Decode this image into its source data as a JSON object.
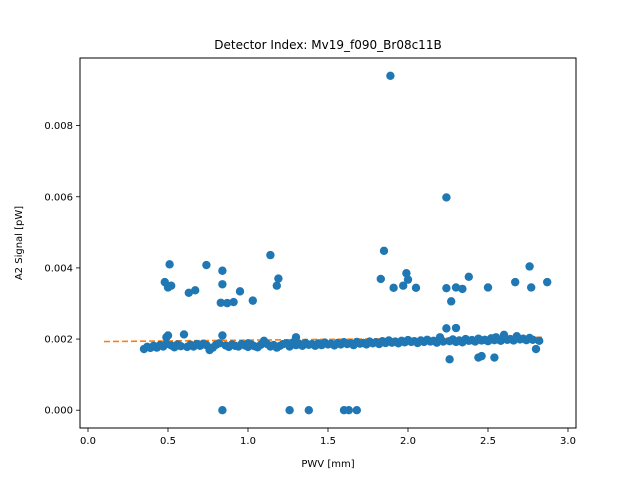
{
  "chart_data": {
    "type": "scatter",
    "title": "Detector Index: Mv19_f090_Br08c11B",
    "xlabel": "PWV [mm]",
    "ylabel": "A2 Signal [pW]",
    "xlim": [
      -0.05,
      3.05
    ],
    "ylim": [
      -0.0005,
      0.0099
    ],
    "xticks": [
      0.0,
      0.5,
      1.0,
      1.5,
      2.0,
      2.5,
      3.0
    ],
    "xtick_labels": [
      "0.0",
      "0.5",
      "1.0",
      "1.5",
      "2.0",
      "2.5",
      "3.0"
    ],
    "yticks": [
      0.0,
      0.002,
      0.004,
      0.006,
      0.008
    ],
    "ytick_labels": [
      "0.000",
      "0.002",
      "0.004",
      "0.006",
      "0.008"
    ],
    "grid": false,
    "series": [
      {
        "type": "scatter",
        "color": "#1f77b4",
        "points": [
          [
            0.35,
            0.00172
          ],
          [
            0.37,
            0.00178
          ],
          [
            0.39,
            0.00175
          ],
          [
            0.41,
            0.00181
          ],
          [
            0.43,
            0.00176
          ],
          [
            0.45,
            0.00183
          ],
          [
            0.47,
            0.00179
          ],
          [
            0.49,
            0.00186
          ],
          [
            0.5,
            0.0021
          ],
          [
            0.49,
            0.00205
          ],
          [
            0.52,
            0.00182
          ],
          [
            0.54,
            0.00177
          ],
          [
            0.56,
            0.00185
          ],
          [
            0.58,
            0.0018
          ],
          [
            0.6,
            0.00213
          ],
          [
            0.62,
            0.00178
          ],
          [
            0.64,
            0.00184
          ],
          [
            0.66,
            0.00179
          ],
          [
            0.68,
            0.00186
          ],
          [
            0.7,
            0.00181
          ],
          [
            0.72,
            0.00187
          ],
          [
            0.74,
            0.00183
          ],
          [
            0.76,
            0.00169
          ],
          [
            0.78,
            0.00176
          ],
          [
            0.8,
            0.00184
          ],
          [
            0.82,
            0.00188
          ],
          [
            0.84,
            0.0021
          ],
          [
            0.86,
            0.00182
          ],
          [
            0.88,
            0.00178
          ],
          [
            0.9,
            0.00185
          ],
          [
            0.92,
            0.00181
          ],
          [
            0.94,
            0.00179
          ],
          [
            0.96,
            0.00186
          ],
          [
            0.98,
            0.00182
          ],
          [
            1.0,
            0.00178
          ],
          [
            1.02,
            0.00185
          ],
          [
            1.04,
            0.0018
          ],
          [
            1.06,
            0.00177
          ],
          [
            1.08,
            0.00184
          ],
          [
            1.1,
            0.0019
          ],
          [
            1.12,
            0.00186
          ],
          [
            1.14,
            0.00179
          ],
          [
            1.16,
            0.00183
          ],
          [
            1.18,
            0.00176
          ],
          [
            1.2,
            0.00181
          ],
          [
            1.22,
            0.00186
          ],
          [
            1.24,
            0.00188
          ],
          [
            1.26,
            0.00179
          ],
          [
            1.28,
            0.0019
          ],
          [
            1.3,
            0.00183
          ],
          [
            1.32,
            0.00187
          ],
          [
            1.34,
            0.00181
          ],
          [
            1.36,
            0.00189
          ],
          [
            1.38,
            0.00184
          ],
          [
            1.4,
            0.00186
          ],
          [
            1.42,
            0.00181
          ],
          [
            1.44,
            0.00188
          ],
          [
            1.46,
            0.00183
          ],
          [
            1.48,
            0.0019
          ],
          [
            1.5,
            0.00185
          ],
          [
            1.52,
            0.00187
          ],
          [
            1.54,
            0.00182
          ],
          [
            1.56,
            0.00189
          ],
          [
            1.58,
            0.00185
          ],
          [
            1.6,
            0.00191
          ],
          [
            1.62,
            0.00186
          ],
          [
            1.64,
            0.00188
          ],
          [
            1.66,
            0.00183
          ],
          [
            1.68,
            0.00192
          ],
          [
            1.7,
            0.00187
          ],
          [
            1.72,
            0.00189
          ],
          [
            1.74,
            0.00185
          ],
          [
            1.76,
            0.00193
          ],
          [
            1.78,
            0.00188
          ],
          [
            1.8,
            0.00191
          ],
          [
            1.82,
            0.00186
          ],
          [
            1.84,
            0.00194
          ],
          [
            1.86,
            0.00189
          ],
          [
            1.88,
            0.00196
          ],
          [
            1.9,
            0.0019
          ],
          [
            1.92,
            0.00193
          ],
          [
            1.94,
            0.00188
          ],
          [
            1.96,
            0.00195
          ],
          [
            1.98,
            0.00191
          ],
          [
            2.0,
            0.00197
          ],
          [
            2.02,
            0.00192
          ],
          [
            2.04,
            0.00194
          ],
          [
            2.06,
            0.00189
          ],
          [
            2.08,
            0.00196
          ],
          [
            2.1,
            0.00192
          ],
          [
            2.12,
            0.00198
          ],
          [
            2.14,
            0.00193
          ],
          [
            2.16,
            0.00195
          ],
          [
            2.18,
            0.0019
          ],
          [
            2.2,
            0.00197
          ],
          [
            2.22,
            0.00193
          ],
          [
            2.24,
            0.0023
          ],
          [
            2.26,
            0.00194
          ],
          [
            2.28,
            0.00199
          ],
          [
            2.3,
            0.00192
          ],
          [
            2.32,
            0.00196
          ],
          [
            2.34,
            0.00191
          ],
          [
            2.36,
            0.002
          ],
          [
            2.38,
            0.00195
          ],
          [
            2.4,
            0.00197
          ],
          [
            2.42,
            0.00193
          ],
          [
            2.44,
            0.00201
          ],
          [
            2.46,
            0.00196
          ],
          [
            2.48,
            0.00198
          ],
          [
            2.5,
            0.00194
          ],
          [
            2.52,
            0.00202
          ],
          [
            2.54,
            0.00197
          ],
          [
            2.56,
            0.00199
          ],
          [
            2.58,
            0.00195
          ],
          [
            2.6,
            0.00203
          ],
          [
            2.62,
            0.00198
          ],
          [
            2.64,
            0.002
          ],
          [
            2.66,
            0.00196
          ],
          [
            2.68,
            0.00204
          ],
          [
            2.7,
            0.00199
          ],
          [
            2.72,
            0.00201
          ],
          [
            2.74,
            0.00197
          ],
          [
            2.76,
            0.00203
          ],
          [
            2.78,
            0.00198
          ],
          [
            2.8,
            0.00172
          ],
          [
            2.82,
            0.00195
          ],
          [
            2.6,
            0.00212
          ],
          [
            2.68,
            0.00208
          ],
          [
            2.55,
            0.00205
          ],
          [
            2.3,
            0.00231
          ],
          [
            2.44,
            0.00148
          ],
          [
            2.46,
            0.00152
          ],
          [
            2.54,
            0.00148
          ],
          [
            2.26,
            0.00143
          ],
          [
            2.2,
            0.00205
          ],
          [
            1.3,
            0.00205
          ],
          [
            1.1,
            0.00195
          ],
          [
            1.0,
            0.00188
          ],
          [
            0.48,
            0.0036
          ],
          [
            0.5,
            0.00345
          ],
          [
            0.52,
            0.0035
          ],
          [
            0.51,
            0.0041
          ],
          [
            0.63,
            0.0033
          ],
          [
            0.67,
            0.00337
          ],
          [
            0.74,
            0.00408
          ],
          [
            0.83,
            0.00302
          ],
          [
            0.84,
            0.00392
          ],
          [
            0.84,
            0.00354
          ],
          [
            0.87,
            0.00301
          ],
          [
            0.91,
            0.00304
          ],
          [
            0.95,
            0.00334
          ],
          [
            1.03,
            0.00308
          ],
          [
            1.14,
            0.00436
          ],
          [
            1.18,
            0.0035
          ],
          [
            1.19,
            0.0037
          ],
          [
            1.83,
            0.00369
          ],
          [
            1.85,
            0.00448
          ],
          [
            1.91,
            0.00344
          ],
          [
            1.97,
            0.0035
          ],
          [
            1.99,
            0.00385
          ],
          [
            2.0,
            0.00367
          ],
          [
            2.05,
            0.00344
          ],
          [
            2.24,
            0.00343
          ],
          [
            2.27,
            0.00306
          ],
          [
            2.3,
            0.00345
          ],
          [
            2.34,
            0.00341
          ],
          [
            2.38,
            0.00375
          ],
          [
            2.5,
            0.00345
          ],
          [
            2.67,
            0.0036
          ],
          [
            2.76,
            0.00404
          ],
          [
            2.77,
            0.00345
          ],
          [
            2.87,
            0.0036
          ],
          [
            1.89,
            0.0094
          ],
          [
            2.24,
            0.00598
          ],
          [
            0.84,
            0.0
          ],
          [
            1.26,
            0.0
          ],
          [
            1.38,
            0.0
          ],
          [
            1.6,
            0.0
          ],
          [
            1.63,
            0.0
          ],
          [
            1.68,
            0.0
          ]
        ]
      },
      {
        "type": "line",
        "style": "dashed",
        "color": "#ff7f0e",
        "x": [
          0.1,
          2.85
        ],
        "y": [
          0.00193,
          0.00205
        ]
      }
    ]
  }
}
